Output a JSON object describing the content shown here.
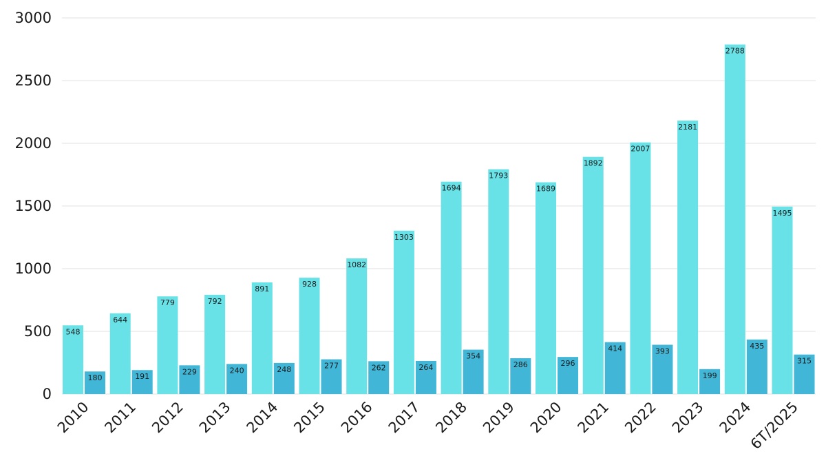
{
  "chart_data": {
    "type": "bar",
    "categories": [
      "2010",
      "2011",
      "2012",
      "2013",
      "2014",
      "2015",
      "2016",
      "2017",
      "2018",
      "2019",
      "2020",
      "2021",
      "2022",
      "2023",
      "2024",
      "6T/2025"
    ],
    "series": [
      {
        "values": [
          548,
          644,
          779,
          792,
          891,
          928,
          1082,
          1303,
          1694,
          1793,
          1689,
          1892,
          2007,
          2181,
          2788,
          1495
        ],
        "color": "#69e2e7"
      },
      {
        "values": [
          180,
          191,
          229,
          240,
          248,
          277,
          262,
          264,
          354,
          286,
          296,
          414,
          393,
          199,
          435,
          315
        ],
        "color": "#41b6d6"
      }
    ],
    "yticks": [
      0,
      500,
      1000,
      1500,
      2000,
      2500,
      3000
    ],
    "ylim": [
      0,
      3000
    ],
    "grid": true,
    "legend": "none",
    "title": "",
    "xlabel": "",
    "ylabel": ""
  }
}
